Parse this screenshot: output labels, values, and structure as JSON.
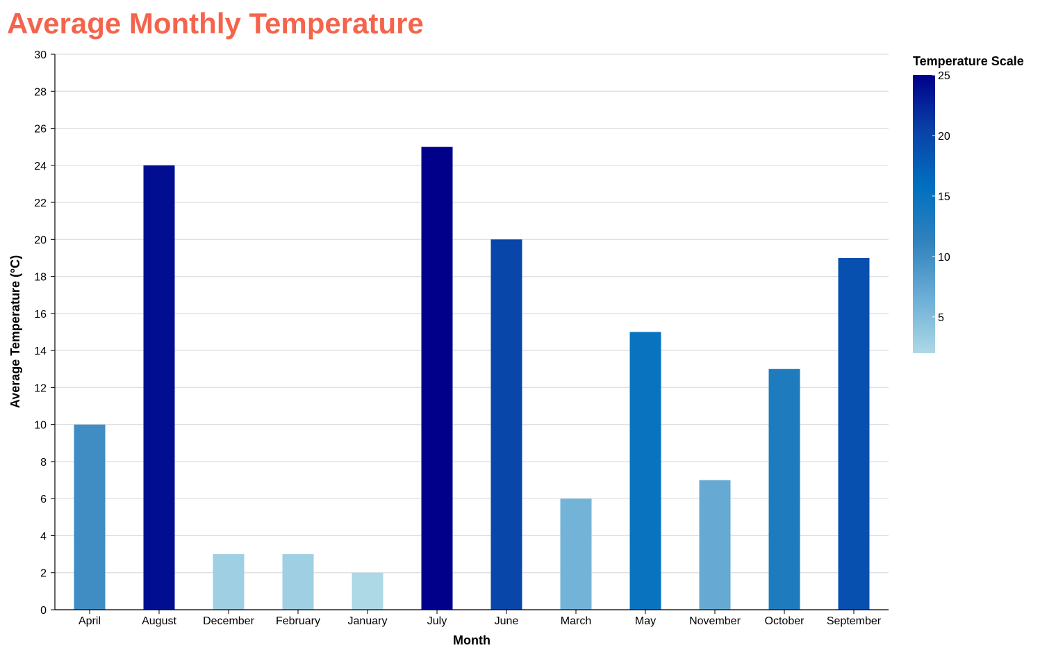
{
  "chart_data": {
    "type": "bar",
    "title": "Average Monthly Temperature",
    "xlabel": "Month",
    "ylabel": "Average Temperature (°C)",
    "categories": [
      "April",
      "August",
      "December",
      "February",
      "January",
      "July",
      "June",
      "March",
      "May",
      "November",
      "October",
      "September"
    ],
    "values": [
      10,
      24,
      3,
      3,
      2,
      25,
      20,
      6,
      15,
      7,
      13,
      19
    ],
    "ylim": [
      0,
      30
    ],
    "yticks": [
      0,
      2,
      4,
      6,
      8,
      10,
      12,
      14,
      16,
      18,
      20,
      22,
      24,
      26,
      28,
      30
    ],
    "grid": true,
    "legend": {
      "title": "Temperature Scale",
      "placement": "right",
      "domain": [
        2,
        25
      ],
      "ticks": [
        5,
        10,
        15,
        20,
        25
      ]
    },
    "colors": {
      "title": "#f4644c",
      "scale": [
        "#add8e6",
        "#6baed6",
        "#3182bd",
        "#0070c0",
        "#0a42a8",
        "#00008b"
      ]
    }
  }
}
